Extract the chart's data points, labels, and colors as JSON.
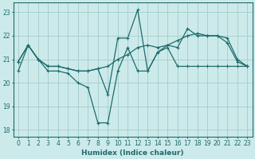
{
  "xlabel": "Humidex (Indice chaleur)",
  "bg_color": "#cdeaea",
  "grid_color": "#a8d0d0",
  "line_color": "#1e6b6b",
  "xlim": [
    -0.5,
    23.5
  ],
  "ylim": [
    17.7,
    23.4
  ],
  "yticks": [
    18,
    19,
    20,
    21,
    22,
    23
  ],
  "xticks": [
    0,
    1,
    2,
    3,
    4,
    5,
    6,
    7,
    8,
    9,
    10,
    11,
    12,
    13,
    14,
    15,
    16,
    17,
    18,
    19,
    20,
    21,
    22,
    23
  ],
  "series1_x": [
    0,
    1,
    2,
    3,
    4,
    5,
    6,
    7,
    8,
    9,
    10,
    11,
    12,
    13,
    14,
    15,
    16,
    17,
    18,
    19,
    20,
    21,
    22,
    23
  ],
  "series1_y": [
    20.9,
    21.6,
    21.0,
    20.7,
    20.7,
    20.6,
    20.5,
    20.5,
    20.6,
    20.7,
    21.0,
    21.2,
    21.5,
    21.6,
    21.5,
    21.6,
    21.8,
    22.0,
    22.1,
    22.0,
    22.0,
    21.9,
    21.0,
    20.7
  ],
  "series2_x": [
    0,
    1,
    2,
    3,
    4,
    5,
    6,
    7,
    8,
    9,
    10,
    11,
    12,
    13,
    14,
    15,
    16,
    17,
    18,
    19,
    20,
    21,
    22,
    23
  ],
  "series2_y": [
    20.9,
    21.6,
    21.0,
    20.7,
    20.7,
    20.6,
    20.5,
    20.5,
    20.6,
    19.5,
    21.9,
    21.9,
    23.1,
    20.5,
    21.3,
    21.6,
    21.5,
    22.3,
    22.0,
    22.0,
    22.0,
    21.7,
    20.9,
    20.7
  ],
  "series3_x": [
    0,
    1,
    2,
    3,
    4,
    5,
    6,
    7,
    8,
    9,
    10,
    11,
    12,
    13,
    14,
    15,
    16,
    17,
    18,
    19,
    20,
    21,
    22,
    23
  ],
  "series3_y": [
    20.5,
    21.6,
    21.0,
    20.5,
    20.5,
    20.4,
    20.0,
    19.8,
    18.3,
    18.3,
    20.5,
    21.5,
    20.5,
    20.5,
    21.3,
    21.5,
    20.7,
    20.7,
    20.7,
    20.7,
    20.7,
    20.7,
    20.7,
    20.7
  ]
}
